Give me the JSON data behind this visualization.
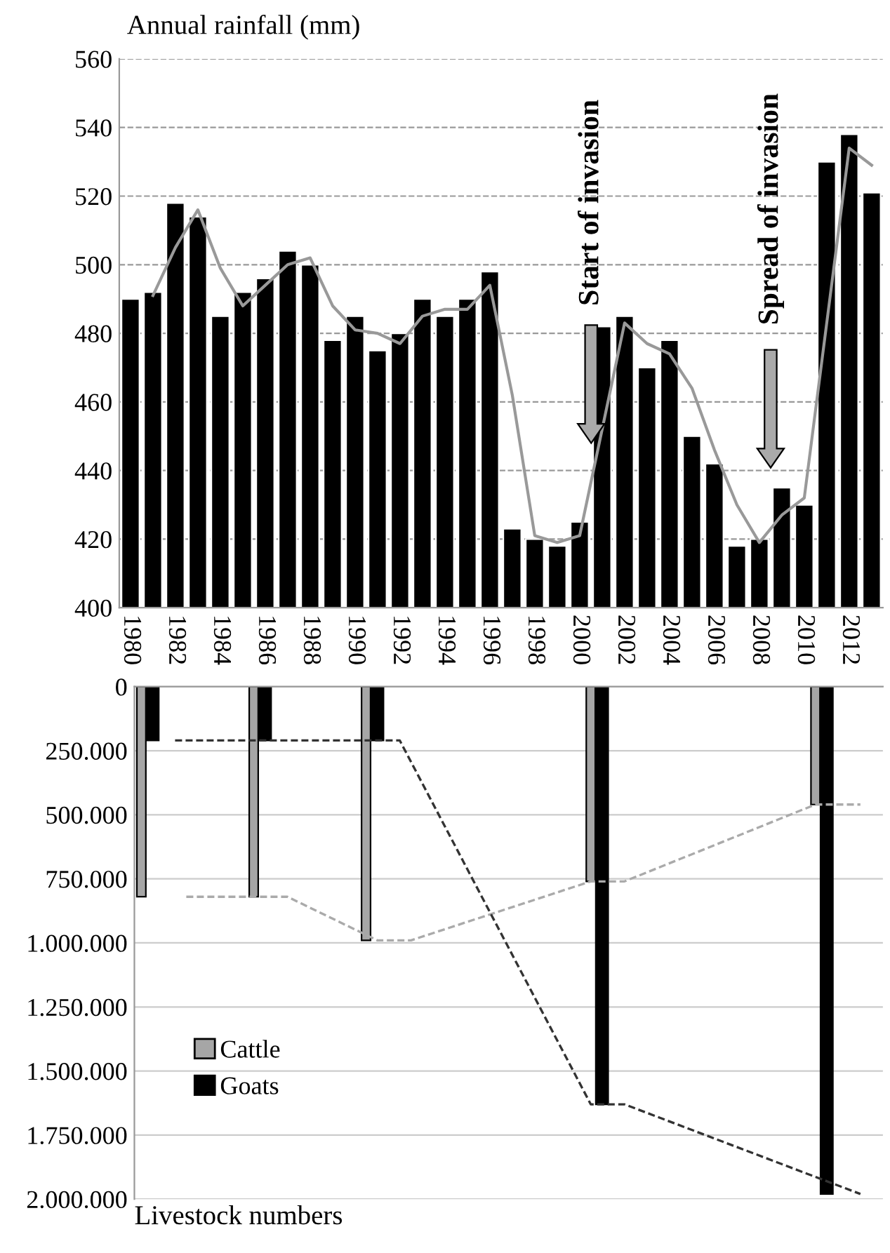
{
  "chart_data": [
    {
      "type": "bar",
      "ylabel": "Annual rainfall (mm)",
      "x": [
        1980,
        1981,
        1982,
        1983,
        1984,
        1985,
        1986,
        1987,
        1988,
        1989,
        1990,
        1991,
        1992,
        1993,
        1994,
        1995,
        1996,
        1997,
        1998,
        1999,
        2000,
        2001,
        2002,
        2003,
        2004,
        2005,
        2006,
        2007,
        2008,
        2009,
        2010,
        2011,
        2012,
        2013
      ],
      "series": [
        {
          "color": "#000000",
          "values": [
            490,
            492,
            518,
            514,
            485,
            492,
            496,
            504,
            500,
            478,
            485,
            475,
            480,
            490,
            485,
            490,
            498,
            423,
            420,
            418,
            425,
            482,
            485,
            470,
            478,
            450,
            442,
            418,
            420,
            435,
            430,
            530,
            538,
            521
          ]
        },
        {
          "type": "line",
          "color": "#999999",
          "values": [
            null,
            491,
            505,
            516,
            499,
            488,
            494,
            500,
            502,
            488,
            481,
            480,
            477,
            485,
            487,
            487,
            494,
            462,
            421,
            419,
            421,
            452,
            483,
            477,
            474,
            464,
            446,
            430,
            419,
            427,
            432,
            483,
            534,
            529
          ]
        }
      ],
      "xlim": [
        1979.5,
        2013.5
      ],
      "xticks": [
        1980,
        1982,
        1984,
        1986,
        1988,
        1990,
        1992,
        1994,
        1996,
        1998,
        2000,
        2002,
        2004,
        2006,
        2008,
        2010,
        2012
      ],
      "ylim": [
        400,
        560
      ],
      "yticks": [
        400,
        420,
        440,
        460,
        480,
        500,
        520,
        540,
        560
      ],
      "grid": "y",
      "annotations": [
        "Start of invasion",
        "Spread of invasion"
      ]
    },
    {
      "type": "bar",
      "xlabel": "Livestock numbers",
      "x": [
        1981,
        1986,
        1991,
        2001,
        2011
      ],
      "series": [
        {
          "name": "Cattle",
          "color": "#a6a6a6",
          "values": [
            820000,
            820000,
            990000,
            760000,
            460000
          ]
        },
        {
          "name": "Goats",
          "color": "#000000",
          "values": [
            210000,
            210000,
            210000,
            1630000,
            1980000
          ]
        },
        {
          "type": "line",
          "color": "#aaaaaa",
          "line_style": "dashed",
          "x": [
            1982.5,
            1987,
            1991,
            1992.5,
            2000.5,
            2002,
            2010.5,
            2012.5
          ],
          "values": [
            820000,
            820000,
            990000,
            990000,
            760000,
            760000,
            460000,
            460000
          ]
        },
        {
          "type": "line",
          "color": "#333333",
          "line_style": "dashed",
          "x": [
            1982,
            1992,
            2000.5,
            2002,
            2012.5
          ],
          "values": [
            210000,
            210000,
            1630000,
            1630000,
            1980000
          ]
        }
      ],
      "xlim": [
        1980.19,
        2013.5
      ],
      "xticks": [
        1982,
        1984,
        1986,
        1988,
        1990,
        1992,
        1994,
        1996,
        1998,
        2000,
        2002,
        2004,
        2006,
        2008,
        2010,
        2012
      ],
      "ylim": [
        2000000,
        0
      ],
      "yticks": [
        0,
        {
          "value": 250000,
          "label": "250.000"
        },
        {
          "value": 500000,
          "label": "500.000"
        },
        {
          "value": 750000,
          "label": "750.000"
        },
        {
          "value": 1000000,
          "label": "1.000.000"
        },
        {
          "value": 1250000,
          "label": "1.250.000"
        },
        {
          "value": 1500000,
          "label": "1.500.000"
        },
        {
          "value": 1750000,
          "label": "1.750.000"
        },
        {
          "value": 2000000,
          "label": "2.000.000"
        }
      ],
      "grid": "y",
      "legend": "bottom left",
      "tick_labels": "y"
    }
  ]
}
